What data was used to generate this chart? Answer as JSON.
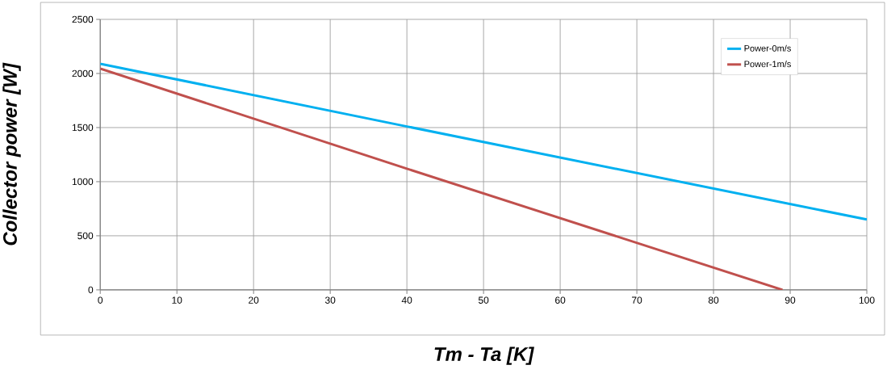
{
  "chart_data": {
    "type": "line",
    "xlabel": "Tm - Ta [K]",
    "ylabel": "Collector power [W]",
    "xlim": [
      0,
      100
    ],
    "xticks": [
      0,
      10,
      20,
      30,
      40,
      50,
      60,
      70,
      80,
      90,
      100
    ],
    "ylim": [
      0,
      2500
    ],
    "yticks": [
      0,
      500,
      1000,
      1500,
      2000,
      2500
    ],
    "grid": true,
    "legend": "top right",
    "marker": "none",
    "line_style": "solid",
    "series": [
      {
        "name": "Power-0m/s",
        "color": "#00b0f0",
        "x": [
          0,
          40,
          100
        ],
        "values": [
          2090,
          1510,
          650
        ]
      },
      {
        "name": "Power-1m/s",
        "color": "#c0504d",
        "x": [
          0,
          40,
          89
        ],
        "values": [
          2045,
          1120,
          0
        ]
      }
    ]
  }
}
